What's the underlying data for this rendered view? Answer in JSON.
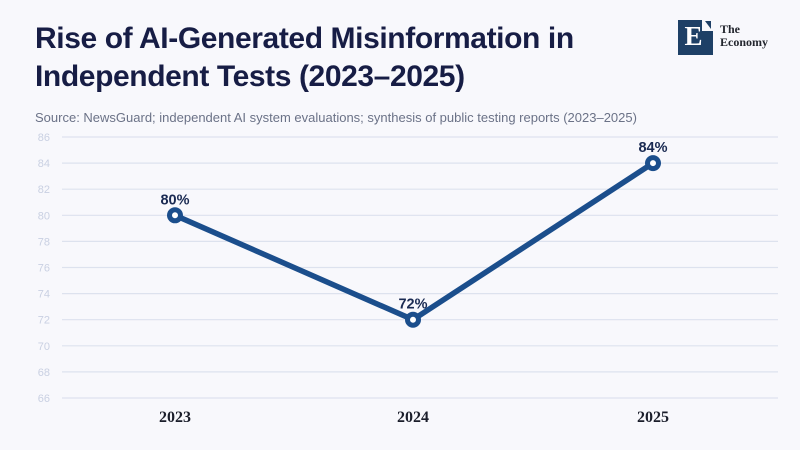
{
  "page": {
    "background": "#f8f8fc"
  },
  "header": {
    "title_lines": [
      "Rise of AI-Generated Misinformation in",
      "Independent Tests (2023–2025)"
    ],
    "source": "Source: NewsGuard; independent AI system evaluations; synthesis of public testing reports (2023–2025)"
  },
  "logo": {
    "letter": "E",
    "name_lines": [
      "The",
      "Economy"
    ]
  },
  "chart_data": {
    "type": "line",
    "title": "Rise of AI-Generated Misinformation in Independent Tests (2023–2025)",
    "categories": [
      "2023",
      "2024",
      "2025"
    ],
    "values": [
      80,
      72,
      84
    ],
    "point_labels": [
      "80%",
      "72%",
      "84%"
    ],
    "xlabel": "",
    "ylabel": "",
    "ylim": [
      66,
      86
    ],
    "ytick_step": 2,
    "grid": true,
    "legend": false,
    "colors": {
      "line": "#1b4e8c",
      "marker_fill": "#ffffff",
      "data_label": "#1a2a52",
      "grid_line": "#dde2ee",
      "tick_label": "#c9d0e2",
      "x_label": "#1b1e2b",
      "title": "#171d45"
    }
  }
}
